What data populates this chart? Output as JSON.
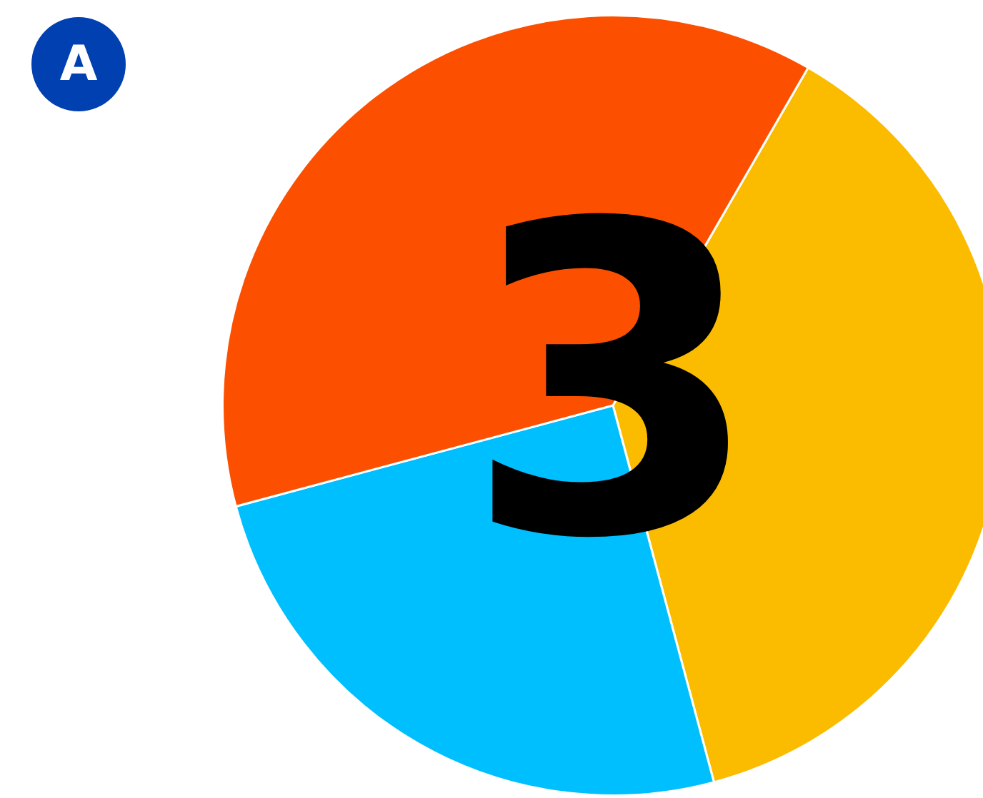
{
  "chart_data": {
    "type": "pie",
    "categories": [
      null,
      null,
      null
    ],
    "values": [
      37.5,
      25,
      37.5
    ],
    "colors": [
      "#fbbc00",
      "#00bfff",
      "#fc5000"
    ],
    "legend": false,
    "annotations": [
      "A",
      "3"
    ]
  }
}
